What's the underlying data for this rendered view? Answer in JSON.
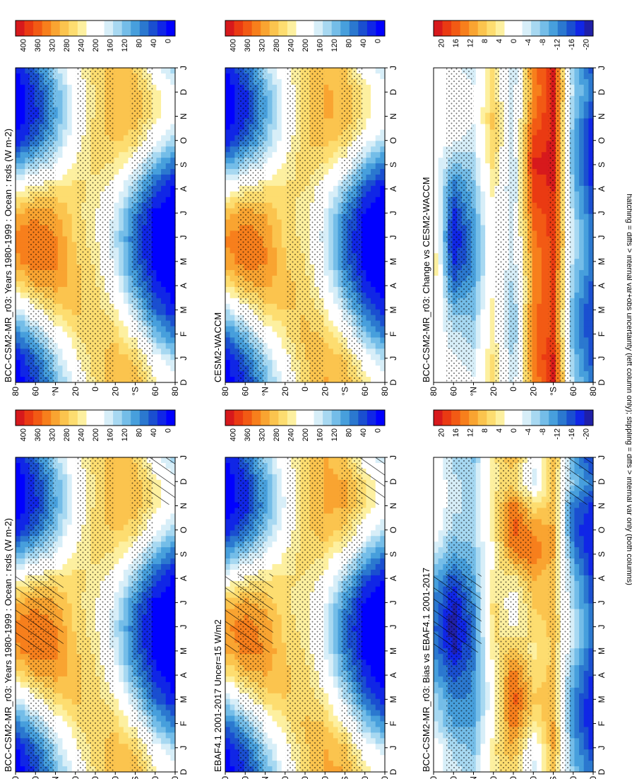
{
  "figure": {
    "caption": "hatching = diffs > internal var+obs uncertainty (left column only); stippling = diffs > internal var only (both columns)"
  },
  "axes": {
    "month_ticks": [
      "D",
      "J",
      "F",
      "M",
      "A",
      "M",
      "J",
      "J",
      "A",
      "S",
      "O",
      "N",
      "D",
      "J"
    ],
    "lat_ticks": [
      "80",
      "60",
      "°N",
      "20",
      "0",
      "20",
      "°S",
      "60",
      "80"
    ]
  },
  "colorbars": {
    "abs_ticks": [
      "400",
      "360",
      "320",
      "280",
      "240",
      "200",
      "160",
      "120",
      "80",
      "40",
      "0"
    ],
    "diff_ticks": [
      "20",
      "16",
      "12",
      "8",
      "4",
      "0",
      "-4",
      "-8",
      "-12",
      "-16",
      "-20"
    ],
    "abs_colors": [
      "#d7191c",
      "#ea3a12",
      "#f25a14",
      "#f77f1c",
      "#f9a431",
      "#fbc44e",
      "#fddd70",
      "#fdf0a0",
      "#ffffff",
      "#ffffff",
      "#d7eef8",
      "#a7d8f1",
      "#74bde8",
      "#479fdc",
      "#2b78cf",
      "#1a4fd0",
      "#1026e6",
      "#0000ff"
    ],
    "diff_colors": [
      "#d7191c",
      "#ea3a12",
      "#f25a14",
      "#f77f1c",
      "#f9a431",
      "#fbc44e",
      "#fddd70",
      "#fdf0a0",
      "#ffffff",
      "#ffffff",
      "#d7eef8",
      "#a7d8f1",
      "#74bde8",
      "#479fdc",
      "#2b78cf",
      "#1a4fd0",
      "#1026e6",
      "#1f1fa8"
    ]
  },
  "chart_data": [
    {
      "type": "heatmap",
      "id": "model_left",
      "kind": "abs",
      "title": "BCC-CSM2-MR_r03: Years 1980-1999 : Ocean : rsds (W m-2)",
      "xlabel": "",
      "ylabel": "",
      "units": "W m-2",
      "x_months": [
        "D",
        "J",
        "F",
        "M",
        "A",
        "M",
        "J",
        "J",
        "A",
        "S",
        "O",
        "N",
        "D",
        "J"
      ],
      "y_lat": [
        80,
        60,
        40,
        20,
        0,
        -20,
        -40,
        -60,
        -80
      ],
      "values": [
        [
          5,
          20,
          80,
          170,
          260,
          320,
          335,
          300,
          215,
          110,
          30,
          5,
          5,
          20
        ],
        [
          45,
          75,
          140,
          225,
          300,
          345,
          350,
          320,
          250,
          155,
          75,
          40,
          45,
          75
        ],
        [
          120,
          155,
          210,
          270,
          315,
          335,
          330,
          305,
          260,
          190,
          140,
          115,
          120,
          155
        ],
        [
          200,
          225,
          255,
          285,
          290,
          285,
          275,
          270,
          265,
          240,
          210,
          195,
          200,
          225
        ],
        [
          260,
          270,
          280,
          270,
          265,
          250,
          240,
          235,
          250,
          265,
          270,
          265,
          260,
          270
        ],
        [
          300,
          295,
          270,
          235,
          200,
          175,
          165,
          180,
          210,
          250,
          285,
          300,
          300,
          295
        ],
        [
          295,
          275,
          220,
          160,
          110,
          80,
          70,
          90,
          140,
          205,
          265,
          295,
          295,
          275
        ],
        [
          245,
          200,
          130,
          70,
          30,
          10,
          5,
          15,
          55,
          125,
          200,
          245,
          245,
          200
        ],
        [
          200,
          150,
          80,
          25,
          5,
          0,
          0,
          0,
          15,
          70,
          150,
          200,
          200,
          150
        ]
      ],
      "overlay": "stipple+hatch"
    },
    {
      "type": "heatmap",
      "id": "model_right",
      "kind": "abs",
      "title": "BCC-CSM2-MR_r03: Years 1980-1999 : Ocean : rsds (W m-2)",
      "xlabel": "",
      "ylabel": "",
      "units": "W m-2",
      "x_months": [
        "D",
        "J",
        "F",
        "M",
        "A",
        "M",
        "J",
        "J",
        "A",
        "S",
        "O",
        "N",
        "D",
        "J"
      ],
      "y_lat": [
        80,
        60,
        40,
        20,
        0,
        -20,
        -40,
        -60,
        -80
      ],
      "values": [
        [
          5,
          20,
          80,
          170,
          260,
          320,
          335,
          300,
          215,
          110,
          30,
          5,
          5,
          20
        ],
        [
          45,
          75,
          140,
          225,
          300,
          345,
          350,
          320,
          250,
          155,
          75,
          40,
          45,
          75
        ],
        [
          120,
          155,
          210,
          270,
          315,
          335,
          330,
          305,
          260,
          190,
          140,
          115,
          120,
          155
        ],
        [
          200,
          225,
          255,
          285,
          290,
          285,
          275,
          270,
          265,
          240,
          210,
          195,
          200,
          225
        ],
        [
          260,
          270,
          280,
          270,
          265,
          250,
          240,
          235,
          250,
          265,
          270,
          265,
          260,
          270
        ],
        [
          300,
          295,
          270,
          235,
          200,
          175,
          165,
          180,
          210,
          250,
          285,
          300,
          300,
          295
        ],
        [
          295,
          275,
          220,
          160,
          110,
          80,
          70,
          90,
          140,
          205,
          265,
          295,
          295,
          275
        ],
        [
          245,
          200,
          130,
          70,
          30,
          10,
          5,
          15,
          55,
          125,
          200,
          245,
          245,
          200
        ],
        [
          200,
          150,
          80,
          25,
          5,
          0,
          0,
          0,
          15,
          70,
          150,
          200,
          200,
          150
        ]
      ],
      "overlay": "stipple"
    },
    {
      "type": "heatmap",
      "id": "obs_left",
      "kind": "abs",
      "title": "EBAF4.1 2001-2017 Uncer=15 W/m2",
      "xlabel": "",
      "ylabel": "",
      "units": "W m-2",
      "x_months": [
        "D",
        "J",
        "F",
        "M",
        "A",
        "M",
        "J",
        "J",
        "A",
        "S",
        "O",
        "N",
        "D",
        "J"
      ],
      "y_lat": [
        80,
        60,
        40,
        20,
        0,
        -20,
        -40,
        -60,
        -80
      ],
      "values": [
        [
          5,
          20,
          75,
          160,
          250,
          305,
          325,
          290,
          205,
          105,
          30,
          5,
          5,
          20
        ],
        [
          40,
          70,
          130,
          215,
          290,
          335,
          340,
          310,
          240,
          150,
          70,
          35,
          40,
          70
        ],
        [
          115,
          150,
          205,
          265,
          305,
          325,
          320,
          295,
          255,
          185,
          135,
          110,
          115,
          150
        ],
        [
          195,
          220,
          250,
          280,
          285,
          280,
          270,
          265,
          260,
          235,
          205,
          190,
          195,
          220
        ],
        [
          265,
          275,
          285,
          275,
          270,
          255,
          245,
          240,
          255,
          270,
          275,
          270,
          265,
          275
        ],
        [
          310,
          305,
          280,
          245,
          210,
          185,
          175,
          190,
          220,
          260,
          295,
          310,
          310,
          305
        ],
        [
          305,
          285,
          230,
          170,
          120,
          90,
          80,
          100,
          150,
          215,
          275,
          305,
          305,
          285
        ],
        [
          255,
          210,
          140,
          80,
          35,
          12,
          6,
          18,
          60,
          135,
          210,
          255,
          255,
          210
        ],
        [
          215,
          165,
          90,
          30,
          6,
          0,
          0,
          0,
          18,
          80,
          165,
          215,
          215,
          165
        ]
      ],
      "overlay": "stipple+hatch"
    },
    {
      "type": "heatmap",
      "id": "obs_right",
      "kind": "abs",
      "title": "CESM2-WACCM",
      "xlabel": "",
      "ylabel": "",
      "units": "W m-2",
      "x_months": [
        "D",
        "J",
        "F",
        "M",
        "A",
        "M",
        "J",
        "J",
        "A",
        "S",
        "O",
        "N",
        "D",
        "J"
      ],
      "y_lat": [
        80,
        60,
        40,
        20,
        0,
        -20,
        -40,
        -60,
        -80
      ],
      "values": [
        [
          5,
          20,
          78,
          165,
          255,
          315,
          330,
          295,
          210,
          108,
          30,
          5,
          5,
          20
        ],
        [
          42,
          72,
          135,
          220,
          295,
          340,
          345,
          315,
          245,
          152,
          72,
          38,
          42,
          72
        ],
        [
          118,
          152,
          208,
          268,
          310,
          330,
          325,
          300,
          258,
          188,
          138,
          112,
          118,
          152
        ],
        [
          198,
          222,
          252,
          282,
          288,
          282,
          272,
          268,
          262,
          238,
          208,
          192,
          198,
          222
        ],
        [
          268,
          278,
          288,
          278,
          272,
          258,
          248,
          243,
          258,
          272,
          278,
          273,
          268,
          278
        ],
        [
          305,
          300,
          275,
          240,
          205,
          180,
          170,
          185,
          215,
          255,
          290,
          305,
          305,
          300
        ],
        [
          300,
          280,
          225,
          165,
          115,
          85,
          75,
          95,
          145,
          210,
          270,
          300,
          300,
          280
        ],
        [
          250,
          205,
          135,
          75,
          32,
          11,
          5,
          16,
          58,
          130,
          205,
          250,
          250,
          205
        ],
        [
          205,
          155,
          85,
          27,
          5,
          0,
          0,
          0,
          16,
          75,
          155,
          205,
          205,
          155
        ]
      ],
      "overlay": "stipple"
    },
    {
      "type": "heatmap",
      "id": "bias_left",
      "kind": "diff",
      "title": "BCC-CSM2-MR_r03: Bias vs EBAF4.1 2001-2017",
      "xlabel": "",
      "ylabel": "",
      "units": "W m-2",
      "x_months": [
        "D",
        "J",
        "F",
        "M",
        "A",
        "M",
        "J",
        "J",
        "A",
        "S",
        "O",
        "N",
        "D",
        "J"
      ],
      "y_lat": [
        80,
        60,
        40,
        20,
        0,
        -20,
        -40,
        -60,
        -80
      ],
      "values": [
        [
          0,
          0,
          -4,
          -6,
          -10,
          -12,
          -14,
          -12,
          -10,
          -4,
          0,
          0,
          0,
          0
        ],
        [
          -4,
          -6,
          -10,
          -12,
          -16,
          -20,
          -22,
          -20,
          -16,
          -10,
          -6,
          -4,
          -4,
          -6
        ],
        [
          -6,
          -8,
          -10,
          -12,
          -12,
          -14,
          -14,
          -12,
          -10,
          -8,
          -6,
          -6,
          -6,
          -8
        ],
        [
          4,
          4,
          2,
          0,
          2,
          4,
          6,
          6,
          4,
          2,
          4,
          4,
          4,
          4
        ],
        [
          6,
          10,
          14,
          16,
          14,
          8,
          2,
          0,
          4,
          12,
          16,
          14,
          6,
          10
        ],
        [
          -4,
          -2,
          4,
          8,
          6,
          4,
          6,
          8,
          10,
          14,
          12,
          6,
          -4,
          -2
        ],
        [
          8,
          10,
          10,
          8,
          8,
          8,
          8,
          8,
          8,
          10,
          10,
          8,
          8,
          10
        ],
        [
          -8,
          -10,
          -12,
          -12,
          -10,
          -6,
          -4,
          -6,
          -8,
          -12,
          -16,
          -14,
          -8,
          -10
        ],
        [
          -14,
          -18,
          -20,
          -20,
          -18,
          -16,
          -14,
          -16,
          -18,
          -20,
          -20,
          -18,
          -14,
          -18
        ]
      ],
      "overlay": "stipple+hatch"
    },
    {
      "type": "heatmap",
      "id": "change_right",
      "kind": "diff",
      "title": "BCC-CSM2-MR_r03: Change vs CESM2-WACCM",
      "xlabel": "",
      "ylabel": "",
      "units": "W m-2",
      "x_months": [
        "D",
        "J",
        "F",
        "M",
        "A",
        "M",
        "J",
        "J",
        "A",
        "S",
        "O",
        "N",
        "D",
        "J"
      ],
      "y_lat": [
        80,
        60,
        40,
        20,
        0,
        -20,
        -40,
        -60,
        -80
      ],
      "values": [
        [
          0,
          0,
          0,
          2,
          4,
          6,
          4,
          4,
          2,
          0,
          0,
          0,
          0,
          0
        ],
        [
          0,
          -2,
          -4,
          -8,
          -14,
          -18,
          -20,
          -18,
          -14,
          -8,
          -2,
          0,
          0,
          -2
        ],
        [
          -2,
          -4,
          -6,
          -8,
          -10,
          -12,
          -12,
          -10,
          -8,
          -6,
          -4,
          -2,
          -2,
          -4
        ],
        [
          6,
          6,
          4,
          4,
          2,
          2,
          2,
          2,
          4,
          6,
          8,
          8,
          6,
          6
        ],
        [
          -4,
          -6,
          -8,
          -8,
          -6,
          -4,
          -4,
          -4,
          -6,
          -6,
          -4,
          -4,
          -4,
          -6
        ],
        [
          12,
          14,
          14,
          14,
          12,
          12,
          14,
          16,
          18,
          20,
          18,
          14,
          12,
          14
        ],
        [
          20,
          20,
          18,
          18,
          18,
          18,
          18,
          18,
          20,
          20,
          20,
          20,
          20,
          20
        ],
        [
          -6,
          -8,
          -10,
          -10,
          -8,
          -6,
          -4,
          -6,
          -8,
          -10,
          -10,
          -8,
          -6,
          -8
        ],
        [
          -14,
          -16,
          -18,
          -18,
          -16,
          -14,
          -14,
          -16,
          -18,
          -20,
          -20,
          -18,
          -14,
          -16
        ]
      ],
      "overlay": "stipple"
    }
  ]
}
